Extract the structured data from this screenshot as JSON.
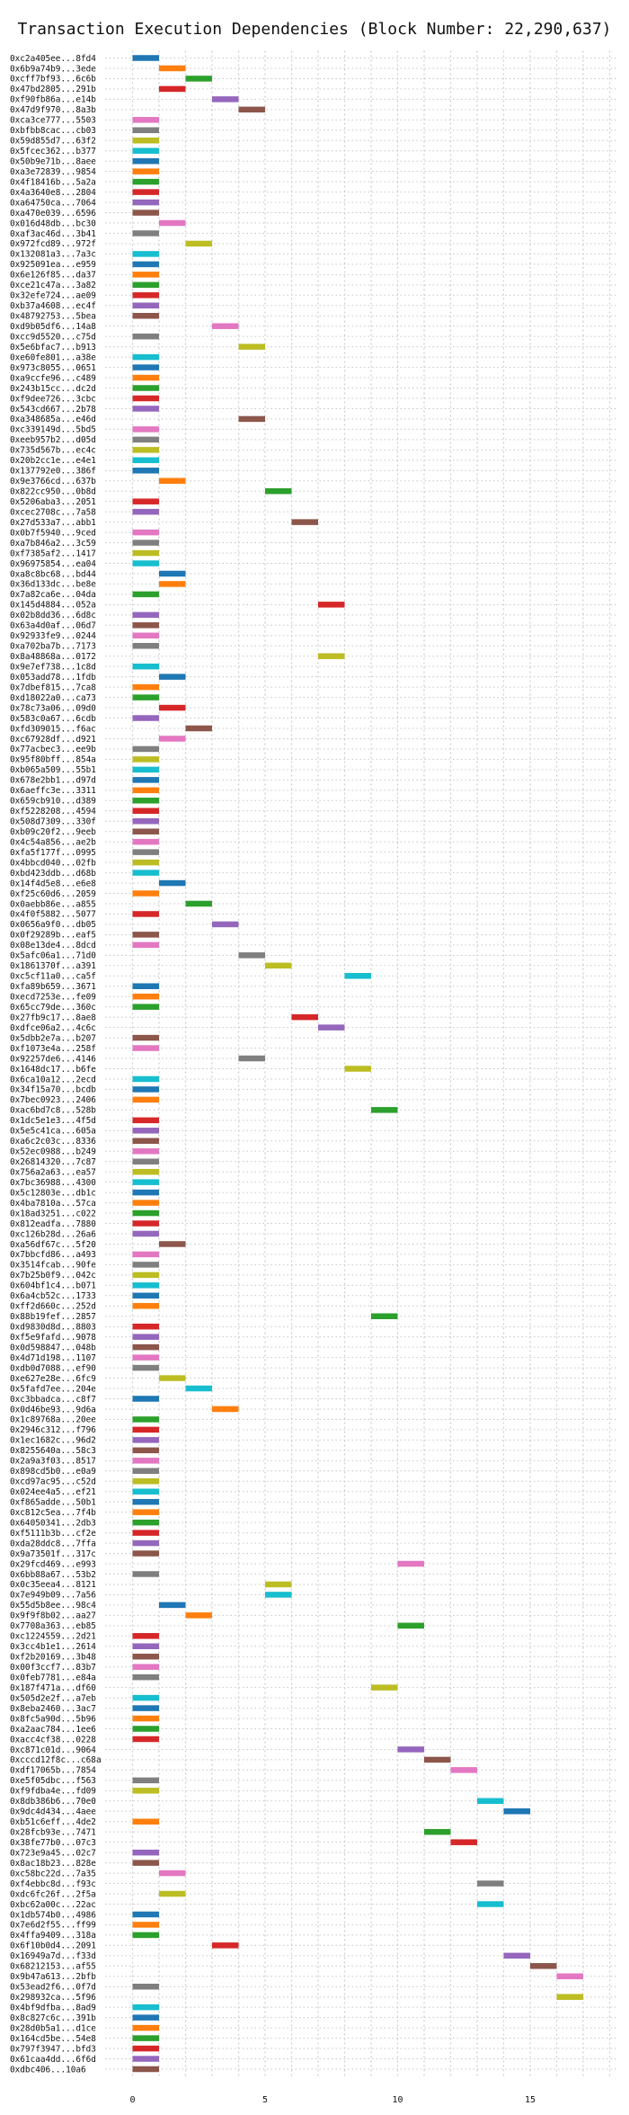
{
  "chart_data": {
    "type": "bar",
    "title": "Transaction Execution Dependencies (Block Number: 22,290,637)",
    "xlabel": "",
    "ylabel": "",
    "xlim": [
      -0.3,
      18
    ],
    "xticks": [
      0,
      5,
      10,
      15
    ],
    "grid": true,
    "palette": {
      "blue": "#1f77b4",
      "orange": "#ff7f0e",
      "green": "#2ca02c",
      "red": "#d62728",
      "purple": "#9467bd",
      "brown": "#8c564b",
      "pink": "#e377c2",
      "gray": "#7f7f7f",
      "olive": "#bcbd22",
      "cyan": "#17becf"
    },
    "bar_length": 1,
    "transactions": [
      {
        "tx": "0xc2a405ee...8fd4",
        "start": 0,
        "color": "blue"
      },
      {
        "tx": "0x6b9a74b9...3ede",
        "start": 1,
        "color": "orange"
      },
      {
        "tx": "0xcff7bf93...6c6b",
        "start": 2,
        "color": "green"
      },
      {
        "tx": "0x47bd2805...291b",
        "start": 1,
        "color": "red"
      },
      {
        "tx": "0xf90fb86a...e14b",
        "start": 3,
        "color": "purple"
      },
      {
        "tx": "0x47d9f970...8a3b",
        "start": 4,
        "color": "brown"
      },
      {
        "tx": "0xca3ce777...5503",
        "start": 0,
        "color": "pink"
      },
      {
        "tx": "0xbfbb8cac...cb03",
        "start": 0,
        "color": "gray"
      },
      {
        "tx": "0x59d855d7...63f2",
        "start": 0,
        "color": "olive"
      },
      {
        "tx": "0x5fcec362...b377",
        "start": 0,
        "color": "cyan"
      },
      {
        "tx": "0x50b9e71b...8aee",
        "start": 0,
        "color": "blue"
      },
      {
        "tx": "0xa3e72839...9854",
        "start": 0,
        "color": "orange"
      },
      {
        "tx": "0x4f18416b...5a2a",
        "start": 0,
        "color": "green"
      },
      {
        "tx": "0x4a3640e8...2804",
        "start": 0,
        "color": "red"
      },
      {
        "tx": "0xa64750ca...7064",
        "start": 0,
        "color": "purple"
      },
      {
        "tx": "0xa470e039...6596",
        "start": 0,
        "color": "brown"
      },
      {
        "tx": "0x016d48db...bc30",
        "start": 1,
        "color": "pink"
      },
      {
        "tx": "0xaf3ac46d...3b41",
        "start": 0,
        "color": "gray"
      },
      {
        "tx": "0x972fcd89...972f",
        "start": 2,
        "color": "olive"
      },
      {
        "tx": "0x132081a3...7a3c",
        "start": 0,
        "color": "cyan"
      },
      {
        "tx": "0x925091ea...e959",
        "start": 0,
        "color": "blue"
      },
      {
        "tx": "0x6e126f85...da37",
        "start": 0,
        "color": "orange"
      },
      {
        "tx": "0xce21c47a...3a82",
        "start": 0,
        "color": "green"
      },
      {
        "tx": "0x32efe724...ae09",
        "start": 0,
        "color": "red"
      },
      {
        "tx": "0xb37a4608...ec4f",
        "start": 0,
        "color": "purple"
      },
      {
        "tx": "0x48792753...5bea",
        "start": 0,
        "color": "brown"
      },
      {
        "tx": "0xd9b05df6...14a8",
        "start": 3,
        "color": "pink"
      },
      {
        "tx": "0xcc9d5520...c75d",
        "start": 0,
        "color": "gray"
      },
      {
        "tx": "0x5e6bfac7...b913",
        "start": 4,
        "color": "olive"
      },
      {
        "tx": "0xe60fe801...a38e",
        "start": 0,
        "color": "cyan"
      },
      {
        "tx": "0x973c8055...0651",
        "start": 0,
        "color": "blue"
      },
      {
        "tx": "0xa9ccfe96...c489",
        "start": 0,
        "color": "orange"
      },
      {
        "tx": "0x243b15cc...dc2d",
        "start": 0,
        "color": "green"
      },
      {
        "tx": "0xf9dee726...3cbc",
        "start": 0,
        "color": "red"
      },
      {
        "tx": "0x543cd667...2b78",
        "start": 0,
        "color": "purple"
      },
      {
        "tx": "0xa348685a...e46d",
        "start": 4,
        "color": "brown"
      },
      {
        "tx": "0xc339149d...5bd5",
        "start": 0,
        "color": "pink"
      },
      {
        "tx": "0xeeb957b2...d05d",
        "start": 0,
        "color": "gray"
      },
      {
        "tx": "0x735d567b...ec4c",
        "start": 0,
        "color": "olive"
      },
      {
        "tx": "0x20b2cc1e...e4e1",
        "start": 0,
        "color": "cyan"
      },
      {
        "tx": "0x137792e0...386f",
        "start": 0,
        "color": "blue"
      },
      {
        "tx": "0x9e3766cd...637b",
        "start": 1,
        "color": "orange"
      },
      {
        "tx": "0x822cc950...0b8d",
        "start": 5,
        "color": "green"
      },
      {
        "tx": "0x5206aba3...2051",
        "start": 0,
        "color": "red"
      },
      {
        "tx": "0xcec2708c...7a58",
        "start": 0,
        "color": "purple"
      },
      {
        "tx": "0x27d533a7...abb1",
        "start": 6,
        "color": "brown"
      },
      {
        "tx": "0x0b7f5940...9ced",
        "start": 0,
        "color": "pink"
      },
      {
        "tx": "0xa7b846a2...3c59",
        "start": 0,
        "color": "gray"
      },
      {
        "tx": "0xf7385af2...1417",
        "start": 0,
        "color": "olive"
      },
      {
        "tx": "0x96975854...ea04",
        "start": 0,
        "color": "cyan"
      },
      {
        "tx": "0xa8c8bc68...bd44",
        "start": 1,
        "color": "blue"
      },
      {
        "tx": "0x36d133dc...be8e",
        "start": 1,
        "color": "orange"
      },
      {
        "tx": "0x7a82ca6e...04da",
        "start": 0,
        "color": "green"
      },
      {
        "tx": "0x145d4884...052a",
        "start": 7,
        "color": "red"
      },
      {
        "tx": "0x02b8dd36...6d8c",
        "start": 0,
        "color": "purple"
      },
      {
        "tx": "0x63a4d0af...06d7",
        "start": 0,
        "color": "brown"
      },
      {
        "tx": "0x92933fe9...0244",
        "start": 0,
        "color": "pink"
      },
      {
        "tx": "0xa702ba7b...7173",
        "start": 0,
        "color": "gray"
      },
      {
        "tx": "0x8a48868a...0172",
        "start": 7,
        "color": "olive"
      },
      {
        "tx": "0x9e7ef738...1c8d",
        "start": 0,
        "color": "cyan"
      },
      {
        "tx": "0x053add78...1fdb",
        "start": 1,
        "color": "blue"
      },
      {
        "tx": "0x7dbef815...7ca8",
        "start": 0,
        "color": "orange"
      },
      {
        "tx": "0xd18022a0...ca73",
        "start": 0,
        "color": "green"
      },
      {
        "tx": "0x78c73a06...09d0",
        "start": 1,
        "color": "red"
      },
      {
        "tx": "0x583c0a67...6cdb",
        "start": 0,
        "color": "purple"
      },
      {
        "tx": "0xfd309015...f6ac",
        "start": 2,
        "color": "brown"
      },
      {
        "tx": "0xc67928df...d921",
        "start": 1,
        "color": "pink"
      },
      {
        "tx": "0x77acbec3...ee9b",
        "start": 0,
        "color": "gray"
      },
      {
        "tx": "0x95f80bff...854a",
        "start": 0,
        "color": "olive"
      },
      {
        "tx": "0xb065a509...55b1",
        "start": 0,
        "color": "cyan"
      },
      {
        "tx": "0x678e2bb1...d97d",
        "start": 0,
        "color": "blue"
      },
      {
        "tx": "0x6aeffc3e...3311",
        "start": 0,
        "color": "orange"
      },
      {
        "tx": "0x659cb910...d389",
        "start": 0,
        "color": "green"
      },
      {
        "tx": "0xf5228208...4594",
        "start": 0,
        "color": "red"
      },
      {
        "tx": "0x508d7309...330f",
        "start": 0,
        "color": "purple"
      },
      {
        "tx": "0xb09c20f2...9eeb",
        "start": 0,
        "color": "brown"
      },
      {
        "tx": "0x4c54a856...ae2b",
        "start": 0,
        "color": "pink"
      },
      {
        "tx": "0xfa5f177f...0995",
        "start": 0,
        "color": "gray"
      },
      {
        "tx": "0x4bbcd040...02fb",
        "start": 0,
        "color": "olive"
      },
      {
        "tx": "0xbd423ddb...d68b",
        "start": 0,
        "color": "cyan"
      },
      {
        "tx": "0x14f4d5e8...e6e8",
        "start": 1,
        "color": "blue"
      },
      {
        "tx": "0xf25c60d6...2059",
        "start": 0,
        "color": "orange"
      },
      {
        "tx": "0x0aebb86e...a855",
        "start": 2,
        "color": "green"
      },
      {
        "tx": "0x4f0f5882...5077",
        "start": 0,
        "color": "red"
      },
      {
        "tx": "0x0656a9f0...db05",
        "start": 3,
        "color": "purple"
      },
      {
        "tx": "0x0f29289b...eaf5",
        "start": 0,
        "color": "brown"
      },
      {
        "tx": "0x08e13de4...8dcd",
        "start": 0,
        "color": "pink"
      },
      {
        "tx": "0x5afc06a1...71d0",
        "start": 4,
        "color": "gray"
      },
      {
        "tx": "0x1861370f...a391",
        "start": 5,
        "color": "olive"
      },
      {
        "tx": "0xc5cf11a0...ca5f",
        "start": 8,
        "color": "cyan"
      },
      {
        "tx": "0xfa89b659...3671",
        "start": 0,
        "color": "blue"
      },
      {
        "tx": "0xecd7253e...fe09",
        "start": 0,
        "color": "orange"
      },
      {
        "tx": "0x65cc79de...360c",
        "start": 0,
        "color": "green"
      },
      {
        "tx": "0x27fb9c17...8ae8",
        "start": 6,
        "color": "red"
      },
      {
        "tx": "0xdfce06a2...4c6c",
        "start": 7,
        "color": "purple"
      },
      {
        "tx": "0x5dbb2e7a...b207",
        "start": 0,
        "color": "brown"
      },
      {
        "tx": "0xf1073e4a...258f",
        "start": 0,
        "color": "pink"
      },
      {
        "tx": "0x92257de6...4146",
        "start": 4,
        "color": "gray"
      },
      {
        "tx": "0x1648dc17...b6fe",
        "start": 8,
        "color": "olive"
      },
      {
        "tx": "0x6ca10a12...2ecd",
        "start": 0,
        "color": "cyan"
      },
      {
        "tx": "0x34f15a70...bcdb",
        "start": 0,
        "color": "blue"
      },
      {
        "tx": "0x7bec0923...2406",
        "start": 0,
        "color": "orange"
      },
      {
        "tx": "0xac6bd7c8...528b",
        "start": 9,
        "color": "green"
      },
      {
        "tx": "0x1dc5e1e3...4f5d",
        "start": 0,
        "color": "red"
      },
      {
        "tx": "0x5e5c41ca...605a",
        "start": 0,
        "color": "purple"
      },
      {
        "tx": "0xa6c2c03c...8336",
        "start": 0,
        "color": "brown"
      },
      {
        "tx": "0x52ec0988...b249",
        "start": 0,
        "color": "pink"
      },
      {
        "tx": "0x26814320...7c87",
        "start": 0,
        "color": "gray"
      },
      {
        "tx": "0x756a2a63...ea57",
        "start": 0,
        "color": "olive"
      },
      {
        "tx": "0x7bc36988...4300",
        "start": 0,
        "color": "cyan"
      },
      {
        "tx": "0x5c12803e...db1c",
        "start": 0,
        "color": "blue"
      },
      {
        "tx": "0x4ba7810a...57ca",
        "start": 0,
        "color": "orange"
      },
      {
        "tx": "0x18ad3251...c022",
        "start": 0,
        "color": "green"
      },
      {
        "tx": "0x812eadfa...7880",
        "start": 0,
        "color": "red"
      },
      {
        "tx": "0xc126b28d...26a6",
        "start": 0,
        "color": "purple"
      },
      {
        "tx": "0xa56df67c...5f20",
        "start": 1,
        "color": "brown"
      },
      {
        "tx": "0x7bbcfd86...a493",
        "start": 0,
        "color": "pink"
      },
      {
        "tx": "0x3514fcab...90fe",
        "start": 0,
        "color": "gray"
      },
      {
        "tx": "0x7b25b0f9...042c",
        "start": 0,
        "color": "olive"
      },
      {
        "tx": "0x604bf1c4...b071",
        "start": 0,
        "color": "cyan"
      },
      {
        "tx": "0x6a4cb52c...1733",
        "start": 0,
        "color": "blue"
      },
      {
        "tx": "0xff2d660c...252d",
        "start": 0,
        "color": "orange"
      },
      {
        "tx": "0x88b19fef...2857",
        "start": 9,
        "color": "green"
      },
      {
        "tx": "0xd9830d8d...8803",
        "start": 0,
        "color": "red"
      },
      {
        "tx": "0xf5e9fafd...9078",
        "start": 0,
        "color": "purple"
      },
      {
        "tx": "0x0d598847...048b",
        "start": 0,
        "color": "brown"
      },
      {
        "tx": "0x4d71d198...1107",
        "start": 0,
        "color": "pink"
      },
      {
        "tx": "0xdb0d7088...ef90",
        "start": 0,
        "color": "gray"
      },
      {
        "tx": "0xe627e28e...6fc9",
        "start": 1,
        "color": "olive"
      },
      {
        "tx": "0x5fafd7ee...204e",
        "start": 2,
        "color": "cyan"
      },
      {
        "tx": "0xc3bbadca...c8f7",
        "start": 0,
        "color": "blue"
      },
      {
        "tx": "0x0d46be93...9d6a",
        "start": 3,
        "color": "orange"
      },
      {
        "tx": "0x1c89768a...20ee",
        "start": 0,
        "color": "green"
      },
      {
        "tx": "0x2946c312...f796",
        "start": 0,
        "color": "red"
      },
      {
        "tx": "0x1ec1682c...96d2",
        "start": 0,
        "color": "purple"
      },
      {
        "tx": "0x8255640a...58c3",
        "start": 0,
        "color": "brown"
      },
      {
        "tx": "0x2a9a3f03...8517",
        "start": 0,
        "color": "pink"
      },
      {
        "tx": "0x898cd5b0...e0a9",
        "start": 0,
        "color": "gray"
      },
      {
        "tx": "0xcd97ac95...c52d",
        "start": 0,
        "color": "olive"
      },
      {
        "tx": "0x024ee4a5...ef21",
        "start": 0,
        "color": "cyan"
      },
      {
        "tx": "0xf865adde...50b1",
        "start": 0,
        "color": "blue"
      },
      {
        "tx": "0xc812c5ea...7f4b",
        "start": 0,
        "color": "orange"
      },
      {
        "tx": "0x64050341...2db3",
        "start": 0,
        "color": "green"
      },
      {
        "tx": "0xf5111b3b...cf2e",
        "start": 0,
        "color": "red"
      },
      {
        "tx": "0xda28ddc8...7ffa",
        "start": 0,
        "color": "purple"
      },
      {
        "tx": "0x9a73501f...317c",
        "start": 0,
        "color": "brown"
      },
      {
        "tx": "0x29fcd469...e993",
        "start": 10,
        "color": "pink"
      },
      {
        "tx": "0x6bb88a67...53b2",
        "start": 0,
        "color": "gray"
      },
      {
        "tx": "0x0c35eea4...8121",
        "start": 5,
        "color": "olive"
      },
      {
        "tx": "0x7e949b09...7a56",
        "start": 5,
        "color": "cyan"
      },
      {
        "tx": "0x55d5b8ee...98c4",
        "start": 1,
        "color": "blue"
      },
      {
        "tx": "0x9f9f8b02...aa27",
        "start": 2,
        "color": "orange"
      },
      {
        "tx": "0x7708a363...eb85",
        "start": 10,
        "color": "green"
      },
      {
        "tx": "0xc1224559...2d21",
        "start": 0,
        "color": "red"
      },
      {
        "tx": "0x3cc4b1e1...2614",
        "start": 0,
        "color": "purple"
      },
      {
        "tx": "0xf2b20169...3b48",
        "start": 0,
        "color": "brown"
      },
      {
        "tx": "0x00f3ccf7...83b7",
        "start": 0,
        "color": "pink"
      },
      {
        "tx": "0x0feb7781...e84a",
        "start": 0,
        "color": "gray"
      },
      {
        "tx": "0x187f471a...df60",
        "start": 9,
        "color": "olive"
      },
      {
        "tx": "0x505d2e2f...a7eb",
        "start": 0,
        "color": "cyan"
      },
      {
        "tx": "0x8eba2460...3ac7",
        "start": 0,
        "color": "blue"
      },
      {
        "tx": "0x8fc5a90d...5b96",
        "start": 0,
        "color": "orange"
      },
      {
        "tx": "0xa2aac784...1ee6",
        "start": 0,
        "color": "green"
      },
      {
        "tx": "0xacc4cf38...0228",
        "start": 0,
        "color": "red"
      },
      {
        "tx": "0xc871c01d...9064",
        "start": 10,
        "color": "purple"
      },
      {
        "tx": "0xcccd12f8c...c68a",
        "start": 11,
        "color": "brown"
      },
      {
        "tx": "0xdf17065b...7854",
        "start": 12,
        "color": "pink"
      },
      {
        "tx": "0xe5f05dbc...f563",
        "start": 0,
        "color": "gray"
      },
      {
        "tx": "0xf9fdba4e...fd09",
        "start": 0,
        "color": "olive"
      },
      {
        "tx": "0x8db386b6...70e0",
        "start": 13,
        "color": "cyan"
      },
      {
        "tx": "0x9dc4d434...4aee",
        "start": 14,
        "color": "blue"
      },
      {
        "tx": "0xb51c6eff...4de2",
        "start": 0,
        "color": "orange"
      },
      {
        "tx": "0x28fcb93e...7471",
        "start": 11,
        "color": "green"
      },
      {
        "tx": "0x38fe77b0...07c3",
        "start": 12,
        "color": "red"
      },
      {
        "tx": "0x723e9a45...02c7",
        "start": 0,
        "color": "purple"
      },
      {
        "tx": "0x8ac18b23...828e",
        "start": 0,
        "color": "brown"
      },
      {
        "tx": "0xc58bc22d...7a35",
        "start": 1,
        "color": "pink"
      },
      {
        "tx": "0xf4ebbc8d...f93c",
        "start": 13,
        "color": "gray"
      },
      {
        "tx": "0xdc6fc26f...2f5a",
        "start": 1,
        "color": "olive"
      },
      {
        "tx": "0xbc62a00c...22ac",
        "start": 13,
        "color": "cyan"
      },
      {
        "tx": "0x1db574b0...4986",
        "start": 0,
        "color": "blue"
      },
      {
        "tx": "0x7e6d2f55...ff99",
        "start": 0,
        "color": "orange"
      },
      {
        "tx": "0x4ffa9409...318a",
        "start": 0,
        "color": "green"
      },
      {
        "tx": "0x6f10b0d4...2091",
        "start": 3,
        "color": "red"
      },
      {
        "tx": "0x16949a7d...f33d",
        "start": 14,
        "color": "purple"
      },
      {
        "tx": "0x68212153...af55",
        "start": 15,
        "color": "brown"
      },
      {
        "tx": "0x9b47a613...2bfb",
        "start": 16,
        "color": "pink"
      },
      {
        "tx": "0x53ead2f6...0f7d",
        "start": 0,
        "color": "gray"
      },
      {
        "tx": "0x298932ca...5f96",
        "start": 16,
        "color": "olive"
      },
      {
        "tx": "0x4bf9dfba...8ad9",
        "start": 0,
        "color": "cyan"
      },
      {
        "tx": "0x8c827c6c...391b",
        "start": 0,
        "color": "blue"
      },
      {
        "tx": "0x28d0b5a1...d1ce",
        "start": 0,
        "color": "orange"
      },
      {
        "tx": "0x164cd5be...54e8",
        "start": 0,
        "color": "green"
      },
      {
        "tx": "0x797f3947...bfd3",
        "start": 0,
        "color": "red"
      },
      {
        "tx": "0x61caa4dd...6f6d",
        "start": 0,
        "color": "purple"
      },
      {
        "tx": "0xdbc406...10a6",
        "start": 0,
        "color": "brown"
      }
    ]
  }
}
